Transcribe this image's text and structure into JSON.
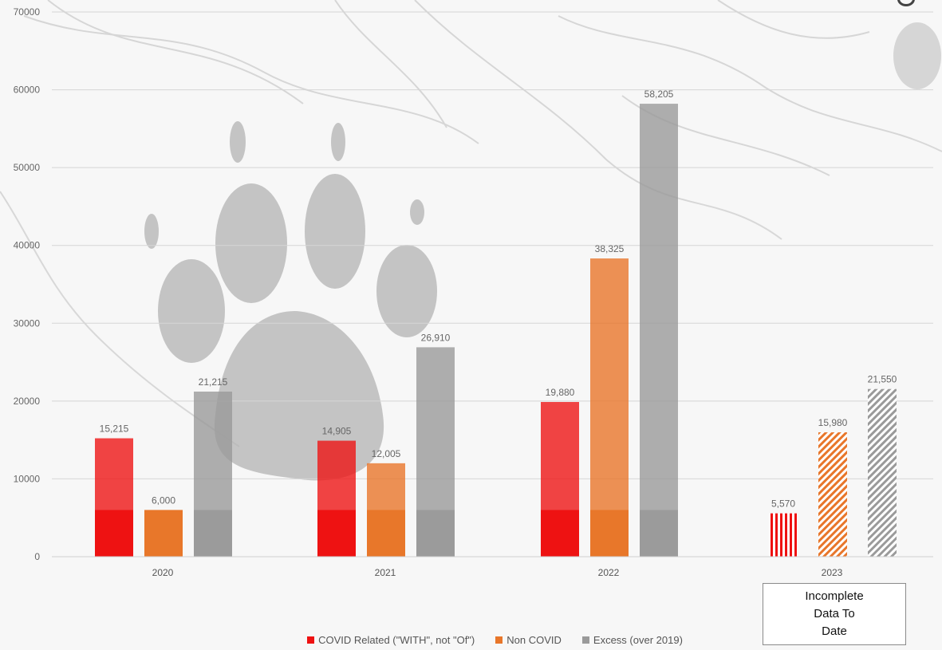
{
  "chart_data": {
    "type": "bar",
    "categories": [
      "2020",
      "2021",
      "2022",
      "2023"
    ],
    "series": [
      {
        "name": "COVID Related (\"WITH\", not \"Of\")",
        "values": [
          15215,
          14905,
          19880,
          5570
        ],
        "color": "#ee1111"
      },
      {
        "name": "Non COVID",
        "values": [
          6000,
          12005,
          38325,
          15980
        ],
        "color": "#e8762a"
      },
      {
        "name": "Excess (over 2019)",
        "values": [
          21215,
          26910,
          58205,
          21550
        ],
        "color": "#9a9a9a"
      }
    ],
    "value_labels": [
      [
        "15,215",
        "6,000",
        "21,215"
      ],
      [
        "14,905",
        "12,005",
        "26,910"
      ],
      [
        "19,880",
        "38,325",
        "58,205"
      ],
      [
        "5,570",
        "15,980",
        "21,550"
      ]
    ],
    "y_ticks": [
      "0",
      "10000",
      "20000",
      "30000",
      "40000",
      "50000",
      "60000",
      "70000"
    ],
    "ylim": [
      0,
      70000
    ],
    "baseline_band": 6000,
    "hatched_categories": [
      "2023"
    ],
    "grid": true,
    "legend_position": "bottom"
  },
  "annotation": {
    "lines": [
      "Incomplete",
      "Data To",
      "Date"
    ]
  },
  "legend": [
    {
      "label": "COVID Related (\"WITH\", not \"Of\")",
      "color": "#ee1111",
      "icon": "square"
    },
    {
      "label": "Non COVID",
      "color": "#e8762a",
      "icon": "square"
    },
    {
      "label": "Excess (over 2019)",
      "color": "#9a9a9a",
      "icon": "square"
    }
  ]
}
